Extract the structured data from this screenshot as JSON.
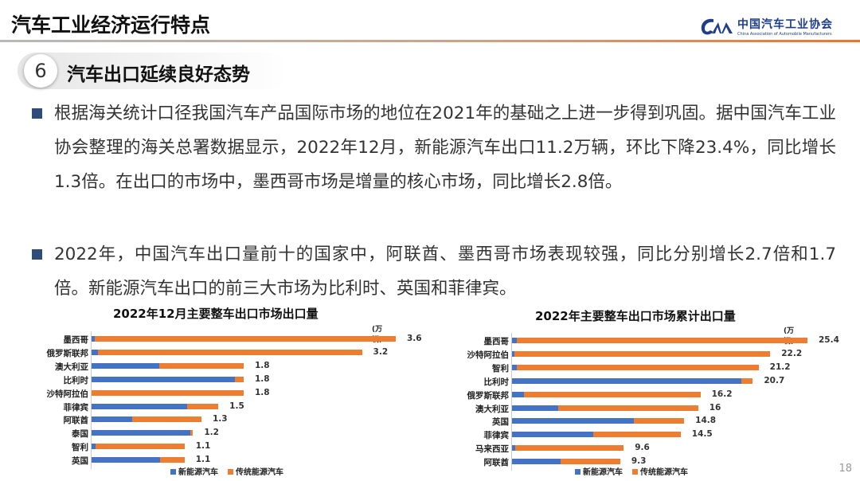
{
  "header": {
    "title": "汽车工业经济运行特点",
    "logo_cn": "中国汽车工业协会",
    "logo_en": "China Association of Automobile Manufacturers"
  },
  "section": {
    "number": "6",
    "title": "汽车出口延续良好态势"
  },
  "bullets": [
    "根据海关统计口径我国汽车产品国际市场的地位在2021年的基础之上进一步得到巩固。据中国汽车工业协会整理的海关总署数据显示，2022年12月，新能源汽车出口11.2万辆，环比下降23.4%，同比增长1.3倍。在出口的市场中，墨西哥市场是增量的核心市场，同比增长2.8倍。",
    "2022年，中国汽车出口量前十的国家中，阿联酋、墨西哥市场表现较强，同比分别增长2.7倍和1.7倍。新能源汽车出口的前三大市场为比利时、英国和菲律宾。"
  ],
  "page_number": "18",
  "colors": {
    "nev": "#4472c4",
    "traditional": "#ed7d31",
    "accent": "#2e4b7a"
  },
  "chart_data": [
    {
      "type": "bar",
      "stacked": true,
      "orientation": "horizontal",
      "title": "2022年12月主要整车出口市场出口量",
      "unit": "(万辆)",
      "categories": [
        "墨西哥",
        "俄罗斯联邦",
        "澳大利亚",
        "比利时",
        "沙特阿拉伯",
        "菲律宾",
        "阿联酋",
        "泰国",
        "智利",
        "英国"
      ],
      "totals": [
        3.6,
        3.2,
        1.8,
        1.8,
        1.8,
        1.5,
        1.3,
        1.2,
        1.1,
        1.1
      ],
      "total_labels": [
        "3.6",
        "3.2",
        "1.8",
        "1.8",
        "1.8",
        "1.5",
        "1.3",
        "1.2",
        "1.1",
        "1.1"
      ],
      "series": [
        {
          "name": "新能源汽车",
          "values": [
            0.04,
            0.08,
            0.8,
            1.7,
            0,
            1.13,
            0.48,
            1.17,
            0.05,
            0.81
          ]
        },
        {
          "name": "传统能源汽车",
          "values": [
            3.56,
            3.12,
            1.0,
            0.1,
            1.8,
            0.37,
            0.82,
            0.03,
            1.05,
            0.29
          ]
        }
      ],
      "xlim": [
        0,
        3.6
      ],
      "legend": "bottom"
    },
    {
      "type": "bar",
      "stacked": true,
      "orientation": "horizontal",
      "title": "2022年主要整车出口市场累计出口量",
      "unit": "(万辆)",
      "categories": [
        "墨西哥",
        "沙特阿拉伯",
        "智利",
        "比利时",
        "俄罗斯联邦",
        "澳大利亚",
        "英国",
        "菲律宾",
        "马来西亚",
        "阿联酋"
      ],
      "totals": [
        25.4,
        22.2,
        21.2,
        20.7,
        16.2,
        16,
        14.8,
        14.5,
        9.6,
        9.3
      ],
      "total_labels": [
        "25.4",
        "22.2",
        "21.2",
        "20.7",
        "16.2",
        "16",
        "14.8",
        "14.5",
        "9.6",
        "9.3"
      ],
      "series": [
        {
          "name": "新能源汽车",
          "values": [
            0.4,
            0.2,
            0.4,
            19.7,
            1.0,
            4.0,
            10.5,
            7.0,
            0.3,
            4.2
          ]
        },
        {
          "name": "传统能源汽车",
          "values": [
            25.0,
            22.0,
            20.8,
            1.0,
            15.2,
            12.0,
            4.3,
            7.5,
            9.3,
            5.1
          ]
        }
      ],
      "xlim": [
        0,
        25.4
      ],
      "legend": "bottom"
    }
  ]
}
